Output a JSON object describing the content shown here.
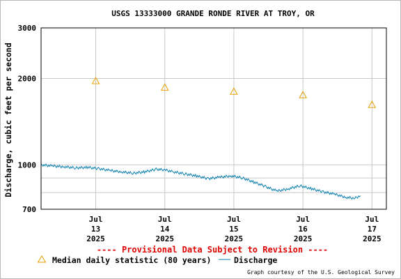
{
  "chart_data": {
    "type": "line",
    "title": "USGS 13333000 GRANDE RONDE RIVER AT TROY, OR",
    "ylabel": "Discharge, cubic feet per second",
    "xlabel": "",
    "yscale": "log",
    "ylim": [
      700,
      3000
    ],
    "y_ticks": [
      700,
      1000,
      2000,
      3000
    ],
    "xlim": [
      "2025-07-12 05:00",
      "2025-07-17 05:00"
    ],
    "x_ticks": [
      {
        "x": "2025-07-13 00:00",
        "line1": "Jul",
        "line2": "13",
        "line3": "2025"
      },
      {
        "x": "2025-07-14 00:00",
        "line1": "Jul",
        "line2": "14",
        "line3": "2025"
      },
      {
        "x": "2025-07-15 00:00",
        "line1": "Jul",
        "line2": "15",
        "line3": "2025"
      },
      {
        "x": "2025-07-16 00:00",
        "line1": "Jul",
        "line2": "16",
        "line3": "2025"
      },
      {
        "x": "2025-07-17 00:00",
        "line1": "Jul",
        "line2": "17",
        "line3": "2025"
      }
    ],
    "grid": true,
    "series": [
      {
        "name": "Median daily statistic (80 years)",
        "type": "scatter",
        "marker": "triangle",
        "color": "#e8a000",
        "points": [
          {
            "x": "2025-07-13 00:00",
            "y": 1960
          },
          {
            "x": "2025-07-14 00:00",
            "y": 1860
          },
          {
            "x": "2025-07-15 00:00",
            "y": 1800
          },
          {
            "x": "2025-07-16 00:00",
            "y": 1750
          },
          {
            "x": "2025-07-17 00:00",
            "y": 1620
          }
        ]
      },
      {
        "name": "Discharge",
        "type": "line",
        "color": "#0a7fb0",
        "points": [
          {
            "x": "2025-07-12 05:00",
            "y": 1000
          },
          {
            "x": "2025-07-12 09:00",
            "y": 990
          },
          {
            "x": "2025-07-12 13:00",
            "y": 985
          },
          {
            "x": "2025-07-12 17:00",
            "y": 975
          },
          {
            "x": "2025-07-12 21:00",
            "y": 980
          },
          {
            "x": "2025-07-13 01:00",
            "y": 970
          },
          {
            "x": "2025-07-13 05:00",
            "y": 955
          },
          {
            "x": "2025-07-13 09:00",
            "y": 945
          },
          {
            "x": "2025-07-13 13:00",
            "y": 935
          },
          {
            "x": "2025-07-13 17:00",
            "y": 945
          },
          {
            "x": "2025-07-13 21:00",
            "y": 965
          },
          {
            "x": "2025-07-14 00:00",
            "y": 960
          },
          {
            "x": "2025-07-14 03:00",
            "y": 945
          },
          {
            "x": "2025-07-14 07:00",
            "y": 930
          },
          {
            "x": "2025-07-14 11:00",
            "y": 915
          },
          {
            "x": "2025-07-14 15:00",
            "y": 895
          },
          {
            "x": "2025-07-14 19:00",
            "y": 905
          },
          {
            "x": "2025-07-14 23:00",
            "y": 915
          },
          {
            "x": "2025-07-15 03:00",
            "y": 900
          },
          {
            "x": "2025-07-15 07:00",
            "y": 870
          },
          {
            "x": "2025-07-15 11:00",
            "y": 840
          },
          {
            "x": "2025-07-15 15:00",
            "y": 810
          },
          {
            "x": "2025-07-15 19:00",
            "y": 825
          },
          {
            "x": "2025-07-15 23:00",
            "y": 845
          },
          {
            "x": "2025-07-16 03:00",
            "y": 825
          },
          {
            "x": "2025-07-16 07:00",
            "y": 805
          },
          {
            "x": "2025-07-16 11:00",
            "y": 790
          },
          {
            "x": "2025-07-16 15:00",
            "y": 770
          },
          {
            "x": "2025-07-16 18:00",
            "y": 765
          },
          {
            "x": "2025-07-16 20:00",
            "y": 780
          }
        ]
      }
    ],
    "provisional_note": "---- Provisional Data Subject to Revision ----",
    "legend": [
      {
        "marker": "triangle",
        "label": "Median daily statistic (80 years)"
      },
      {
        "marker": "line",
        "label": "Discharge"
      }
    ],
    "legend_placement": "bottom",
    "credit": "Graph courtesy of the U.S. Geological Survey"
  }
}
